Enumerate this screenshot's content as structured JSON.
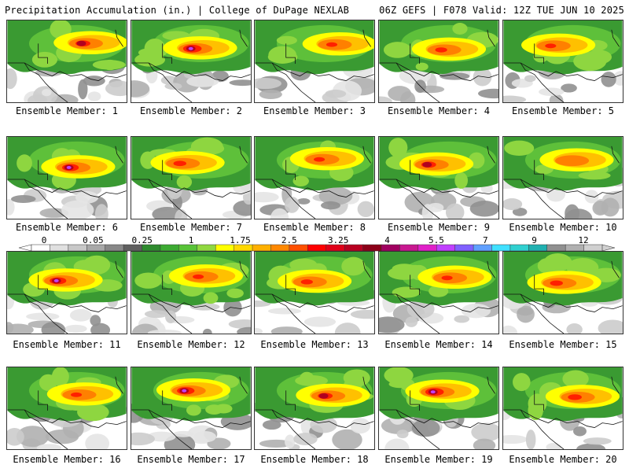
{
  "header": {
    "left": "Precipitation Accumulation (in.) | College of DuPage NEXLAB",
    "right": "06Z GEFS | F078 Valid: 12Z TUE JUN 10 2025"
  },
  "legend": {
    "tick_labels": [
      "0",
      "0.05",
      "0.25",
      "1",
      "1.75",
      "2.5",
      "3.25",
      "4",
      "5.5",
      "7",
      "9",
      "12"
    ],
    "colors": [
      "#ffffff",
      "#e0e0e0",
      "#c8c8c8",
      "#a8a8a8",
      "#888888",
      "#606060",
      "#2e8b2e",
      "#3caa32",
      "#58c338",
      "#90d840",
      "#ffff00",
      "#ffd800",
      "#ffb000",
      "#ff8800",
      "#ff5000",
      "#ff0000",
      "#e00018",
      "#b80020",
      "#8c0018",
      "#a00060",
      "#c81890",
      "#e020c8",
      "#c040ff",
      "#8060ff",
      "#60a0ff",
      "#40e0ff",
      "#30d0d0",
      "#20b0b0",
      "#909090",
      "#b0b0b0",
      "#d0d0d0"
    ]
  },
  "members": [
    {
      "label": "Ensemble Member: 1",
      "intensity": 0.8
    },
    {
      "label": "Ensemble Member: 2",
      "intensity": 1.0
    },
    {
      "label": "Ensemble Member: 3",
      "intensity": 0.6
    },
    {
      "label": "Ensemble Member: 4",
      "intensity": 0.65
    },
    {
      "label": "Ensemble Member: 5",
      "intensity": 0.6
    },
    {
      "label": "Ensemble Member: 6",
      "intensity": 0.9
    },
    {
      "label": "Ensemble Member: 7",
      "intensity": 0.7
    },
    {
      "label": "Ensemble Member: 8",
      "intensity": 0.6
    },
    {
      "label": "Ensemble Member: 9",
      "intensity": 0.8
    },
    {
      "label": "Ensemble Member: 10",
      "intensity": 0.55
    },
    {
      "label": "Ensemble Member: 11",
      "intensity": 0.9
    },
    {
      "label": "Ensemble Member: 12",
      "intensity": 0.6
    },
    {
      "label": "Ensemble Member: 13",
      "intensity": 0.65
    },
    {
      "label": "Ensemble Member: 14",
      "intensity": 0.6
    },
    {
      "label": "Ensemble Member: 15",
      "intensity": 0.7
    },
    {
      "label": "Ensemble Member: 16",
      "intensity": 0.6
    },
    {
      "label": "Ensemble Member: 17",
      "intensity": 0.95
    },
    {
      "label": "Ensemble Member: 18",
      "intensity": 0.8
    },
    {
      "label": "Ensemble Member: 19",
      "intensity": 1.0
    },
    {
      "label": "Ensemble Member: 20",
      "intensity": 0.75
    }
  ]
}
